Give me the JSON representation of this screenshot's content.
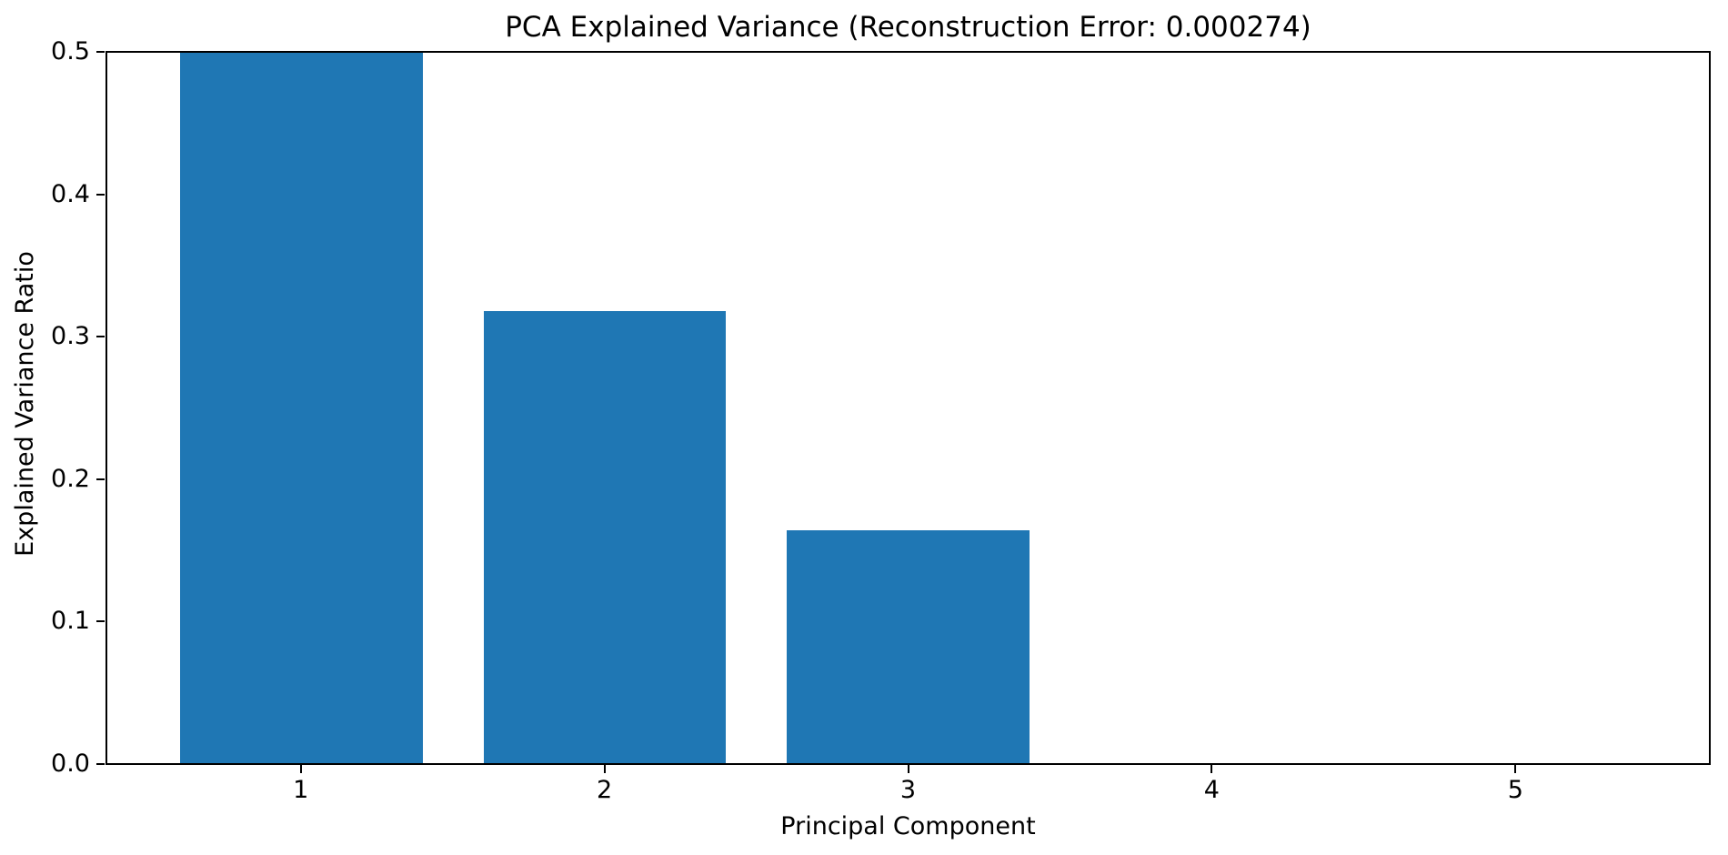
{
  "chart_data": {
    "type": "bar",
    "title": "PCA Explained Variance (Reconstruction Error: 0.000274)",
    "xlabel": "Principal Component",
    "ylabel": "Explained Variance Ratio",
    "categories": [
      "1",
      "2",
      "3",
      "4",
      "5"
    ],
    "values": [
      0.5,
      0.318,
      0.164,
      0.0,
      0.0
    ],
    "annotation": "PC1 bar reaches the axis top and is clipped at the ylim maximum of 0.5; PC4 and PC5 bars are not visible (≈0)",
    "yticks": [
      0.0,
      0.1,
      0.2,
      0.3,
      0.4,
      0.5
    ],
    "ytick_labels": [
      "0.0",
      "0.1",
      "0.2",
      "0.3",
      "0.4",
      "0.5"
    ],
    "ylim": [
      0.0,
      0.5
    ],
    "xlim": [
      0.36,
      5.64
    ],
    "bar_centers": [
      1,
      2,
      3,
      4,
      5
    ],
    "bar_width": 0.8,
    "bar_color": "#1f77b4",
    "spine_color": "#000000",
    "background_color": "#ffffff",
    "grid": false,
    "legend": false
  }
}
